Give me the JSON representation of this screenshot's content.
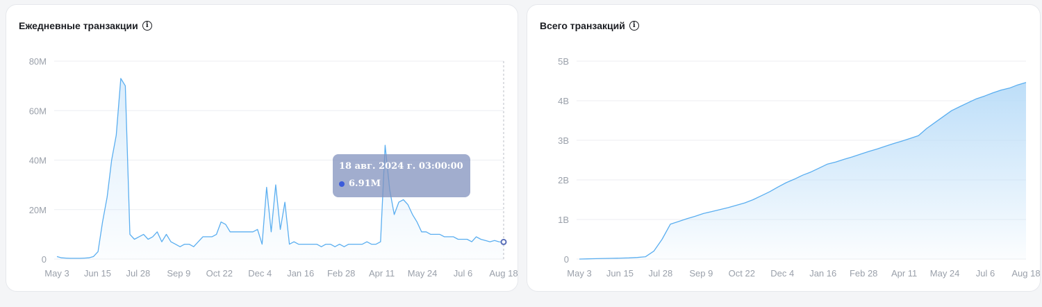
{
  "left_panel": {
    "title": "Ежедневные транзакции",
    "info_icon": "info-icon"
  },
  "right_panel": {
    "title": "Всего транзакций",
    "info_icon": "info-icon"
  },
  "tooltip": {
    "date": "18 авг. 2024 г. 03:00:00",
    "value": "6.91M"
  },
  "colors": {
    "line": "#5aaef0",
    "fill": "#b9dcf8",
    "grid": "#eceef2",
    "tick": "#9aa0aa"
  },
  "chart_data": [
    {
      "type": "line",
      "title": "Ежедневные транзакции",
      "x_labels": [
        "May 3",
        "Jun 15",
        "Jul 28",
        "Sep 9",
        "Oct 22",
        "Dec 4",
        "Jan 16",
        "Feb 28",
        "Apr 11",
        "May 24",
        "Jul 6",
        "Aug 18"
      ],
      "y_ticks": [
        "0",
        "20M",
        "40M",
        "60M",
        "80M"
      ],
      "ylim": [
        0,
        80000000
      ],
      "grid": true,
      "series": [
        {
          "values_millions": [
            1,
            0.5,
            0.4,
            0.3,
            0.3,
            0.3,
            0.4,
            0.5,
            1,
            3,
            15,
            25,
            40,
            50,
            73,
            70,
            10,
            8,
            9,
            10,
            8,
            9,
            11,
            7,
            10,
            7,
            6,
            5,
            6,
            6,
            5,
            7,
            9,
            9,
            9,
            10,
            15,
            14,
            11,
            11,
            11,
            11,
            11,
            11,
            12,
            6,
            29,
            11,
            30,
            12,
            23,
            6,
            7,
            6,
            6,
            6,
            6,
            6,
            5,
            6,
            6,
            5,
            6,
            5,
            6,
            6,
            6,
            6,
            7,
            6,
            6,
            7,
            46,
            28,
            18,
            23,
            24,
            22,
            18,
            15,
            11,
            11,
            10,
            10,
            10,
            9,
            9,
            9,
            8,
            8,
            8,
            7,
            9,
            8,
            7.5,
            7,
            7.5,
            7,
            6.91
          ]
        }
      ]
    },
    {
      "type": "area",
      "title": "Всего транзакций",
      "x_labels": [
        "May 3",
        "Jun 15",
        "Jul 28",
        "Sep 9",
        "Oct 22",
        "Dec 4",
        "Jan 16",
        "Feb 28",
        "Apr 11",
        "May 24",
        "Jul 6",
        "Aug 18"
      ],
      "y_ticks": [
        "0",
        "1B",
        "2B",
        "3B",
        "4B",
        "5B"
      ],
      "ylim": [
        0,
        5000000000
      ],
      "grid": true,
      "series": [
        {
          "values_billions": [
            0,
            0.005,
            0.01,
            0.015,
            0.02,
            0.025,
            0.03,
            0.04,
            0.06,
            0.2,
            0.5,
            0.88,
            0.95,
            1.02,
            1.08,
            1.15,
            1.2,
            1.25,
            1.3,
            1.36,
            1.42,
            1.5,
            1.6,
            1.7,
            1.82,
            1.93,
            2.02,
            2.12,
            2.2,
            2.3,
            2.4,
            2.45,
            2.52,
            2.58,
            2.65,
            2.72,
            2.78,
            2.85,
            2.92,
            2.98,
            3.05,
            3.12,
            3.3,
            3.45,
            3.6,
            3.75,
            3.85,
            3.95,
            4.05,
            4.12,
            4.2,
            4.27,
            4.32,
            4.4,
            4.46
          ]
        }
      ]
    }
  ]
}
